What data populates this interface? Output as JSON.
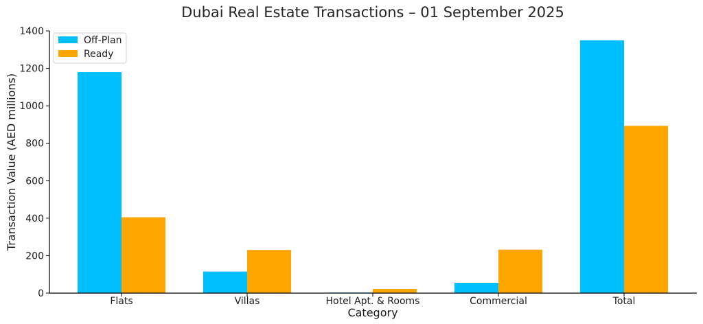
{
  "chart_data": {
    "type": "bar",
    "title": "Dubai Real Estate Transactions – 01 September 2025",
    "xlabel": "Category",
    "ylabel": "Transaction Value (AED millions)",
    "categories": [
      "Flats",
      "Villas",
      "Hotel Apt. & Rooms",
      "Commercial",
      "Total"
    ],
    "series": [
      {
        "name": "Off-Plan",
        "color": "#00BFFF",
        "values": [
          1180,
          115,
          3,
          55,
          1350
        ]
      },
      {
        "name": "Ready",
        "color": "#FFA500",
        "values": [
          405,
          230,
          22,
          232,
          893
        ]
      }
    ],
    "ylim": [
      0,
      1400
    ],
    "yticks": [
      0,
      200,
      400,
      600,
      800,
      1000,
      1200,
      1400
    ],
    "grid": false,
    "legend_position": "top-left"
  }
}
